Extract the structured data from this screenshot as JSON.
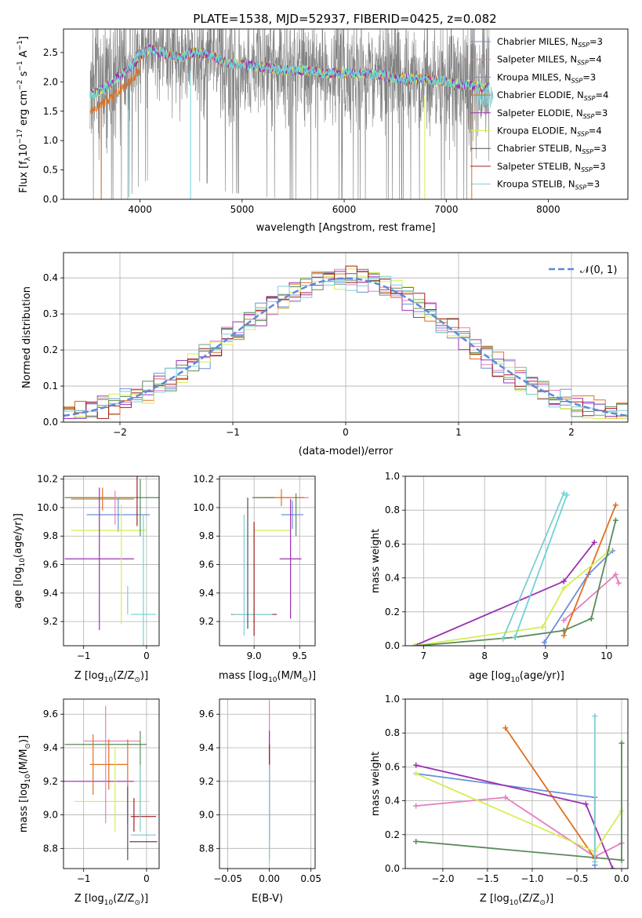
{
  "figure": {
    "title": "PLATE=1538, MJD=52937, FIBERID=0425, z=0.082"
  },
  "colors": {
    "Chabrier MILES": "#6a8fdc",
    "Salpeter MILES": "#e47fbf",
    "Kroupa MILES": "#6a8fdc",
    "Chabrier ELODIE": "#e0701e",
    "Salpeter ELODIE": "#9b30b0",
    "Kroupa ELODIE": "#d4ee52",
    "Chabrier STELIB": "#505050",
    "Salpeter STELIB": "#a02020",
    "Kroupa STELIB": "#80cdd2",
    "data": "#808080",
    "model": "#6ad4d8",
    "green": "#5a8a5a"
  },
  "chart_data": [
    {
      "type": "line",
      "id": "spectrum",
      "xlabel": "wavelength [Angstrom, rest frame]",
      "ylabel": "Flux [f",
      "ylabel_parts": [
        "Flux [f",
        "λ",
        "10",
        "−17",
        " erg cm",
        "−2",
        " s",
        "−1",
        " A",
        "−1",
        "]"
      ],
      "xlim": [
        3250,
        8780
      ],
      "ylim": [
        0,
        2.9
      ],
      "xticks": [
        "4000",
        "5000",
        "6000",
        "7000",
        "8000"
      ],
      "yticks": [
        "0.0",
        "0.5",
        "1.0",
        "1.5",
        "2.0",
        "2.5"
      ],
      "legend_position": "top-right",
      "legend": [
        {
          "label": "Chabrier MILES, N",
          "sub": "SSP",
          "suffix": "=3",
          "color": "#6a8fdc"
        },
        {
          "label": "Salpeter MILES, N",
          "sub": "SSP",
          "suffix": "=4",
          "color": "#e47fbf"
        },
        {
          "label": "Kroupa MILES, N",
          "sub": "SSP",
          "suffix": "=3",
          "color": "#6a8fdc"
        },
        {
          "label": "Chabrier ELODIE, N",
          "sub": "SSP",
          "suffix": "=4",
          "color": "#e0701e"
        },
        {
          "label": "Salpeter ELODIE, N",
          "sub": "SSP",
          "suffix": "=3",
          "color": "#9b30b0"
        },
        {
          "label": "Kroupa ELODIE, N",
          "sub": "SSP",
          "suffix": "=4",
          "color": "#d4ee52"
        },
        {
          "label": "Chabrier STELIB, N",
          "sub": "SSP",
          "suffix": "=3",
          "color": "#505050"
        },
        {
          "label": "Salpeter STELIB, N",
          "sub": "SSP",
          "suffix": "=3",
          "color": "#a02020"
        },
        {
          "label": "Kroupa STELIB, N",
          "sub": "SSP",
          "suffix": "=3",
          "color": "#80cdd2"
        }
      ],
      "continuum": {
        "x": [
          3500,
          3600,
          3700,
          3800,
          3900,
          4000,
          4100,
          4200,
          4300,
          4400,
          4500,
          4600,
          4700,
          4800,
          4900,
          5000,
          5200,
          5400,
          5600,
          5800,
          6000,
          6200,
          6400,
          6600,
          6800,
          7000,
          7200,
          7400
        ],
        "y": [
          1.75,
          1.85,
          1.95,
          2.1,
          2.25,
          2.45,
          2.55,
          2.5,
          2.45,
          2.4,
          2.5,
          2.5,
          2.45,
          2.35,
          2.3,
          2.3,
          2.25,
          2.2,
          2.2,
          2.15,
          2.15,
          2.15,
          2.1,
          2.05,
          2.05,
          2.0,
          1.95,
          1.9
        ]
      }
    },
    {
      "type": "bar",
      "id": "residuals",
      "xlabel": "(data-model)/error",
      "ylabel": "Normed distribution",
      "xlim": [
        -2.5,
        2.5
      ],
      "ylim": [
        0,
        0.47
      ],
      "xticks": [
        "−2",
        "−1",
        "0",
        "1",
        "2"
      ],
      "yticks": [
        "0.0",
        "0.1",
        "0.2",
        "0.3",
        "0.4"
      ],
      "legend_label": "𝒩(0, 1)",
      "legend_position": "top-right",
      "bin_width": 0.1,
      "x_start": -2.5
    },
    {
      "type": "scatter",
      "id": "age-vs-Z",
      "xlabel": "Z [log",
      "xlabel_parts": [
        "Z [log",
        "10",
        "(Z/Z",
        "⊙",
        ")]"
      ],
      "ylabel_parts": [
        "age  [log",
        "10",
        "(age/yr)]"
      ],
      "xlim": [
        -1.32,
        0.2
      ],
      "ylim": [
        9.03,
        10.22
      ],
      "xticks": [
        "−1",
        "0"
      ],
      "yticks": [
        "9.2",
        "9.4",
        "9.6",
        "9.8",
        "10.0",
        "10.2"
      ]
    },
    {
      "type": "scatter",
      "id": "age-vs-mass",
      "xlabel_parts": [
        "mass [log",
        "10",
        "(M/M",
        "⊙",
        ")]"
      ],
      "xlim": [
        8.62,
        9.67
      ],
      "ylim": [
        9.03,
        10.22
      ],
      "xticks": [
        "9.0",
        "9.5"
      ],
      "yticks": [
        "9.2",
        "9.4",
        "9.6",
        "9.8",
        "10.0",
        "10.2"
      ]
    },
    {
      "type": "line",
      "id": "massweight-vs-age",
      "xlabel_parts": [
        "age  [log",
        "10",
        "(age/yr)]"
      ],
      "ylabel": "mass weight",
      "xlim": [
        6.7,
        10.35
      ],
      "ylim": [
        0,
        1.0
      ],
      "xticks": [
        "7",
        "8",
        "9",
        "10"
      ],
      "yticks": [
        "0.0",
        "0.2",
        "0.4",
        "0.6",
        "0.8",
        "1.0"
      ],
      "series": [
        {
          "color": "#6a8fdc",
          "x": [
            8.98,
            9.7,
            10.1
          ],
          "y": [
            0.02,
            0.42,
            0.56
          ]
        },
        {
          "color": "#e47fbf",
          "x": [
            9.3,
            10.15,
            10.2
          ],
          "y": [
            0.15,
            0.42,
            0.37
          ]
        },
        {
          "color": "#e0701e",
          "x": [
            9.3,
            10.15
          ],
          "y": [
            0.06,
            0.83
          ]
        },
        {
          "color": "#9b30b0",
          "x": [
            6.85,
            9.3,
            9.8
          ],
          "y": [
            0.0,
            0.38,
            0.61
          ]
        },
        {
          "color": "#d4ee52",
          "x": [
            6.85,
            8.95,
            9.3,
            10.05
          ],
          "y": [
            0.0,
            0.11,
            0.34,
            0.56
          ]
        },
        {
          "color": "#5a8a5a",
          "x": [
            6.9,
            8.5,
            9.3,
            9.75,
            10.15
          ],
          "y": [
            0.0,
            0.05,
            0.09,
            0.16,
            0.74
          ]
        },
        {
          "color": "#80cdd2",
          "x": [
            8.3,
            9.3
          ],
          "y": [
            0.04,
            0.9
          ]
        },
        {
          "color": "#6ad4d8",
          "x": [
            8.5,
            9.35
          ],
          "y": [
            0.05,
            0.89
          ]
        }
      ]
    },
    {
      "type": "scatter",
      "id": "mass-vs-Z",
      "xlabel_parts": [
        "Z [log",
        "10",
        "(Z/Z",
        "⊙",
        ")]"
      ],
      "ylabel_parts": [
        "mass [log",
        "10",
        "(M/M",
        "⊙",
        ")]"
      ],
      "xlim": [
        -1.32,
        0.2
      ],
      "ylim": [
        8.68,
        9.69
      ],
      "xticks": [
        "−1",
        "0"
      ],
      "yticks": [
        "8.8",
        "9.0",
        "9.2",
        "9.4",
        "9.6"
      ]
    },
    {
      "type": "scatter",
      "id": "mass-vs-ebv",
      "xlabel": "E(B-V)",
      "xlim": [
        -0.06,
        0.055
      ],
      "ylim": [
        8.68,
        9.69
      ],
      "xticks": [
        "−0.05",
        "0.00",
        "0.05"
      ],
      "yticks": [
        "8.8",
        "9.0",
        "9.2",
        "9.4",
        "9.6"
      ]
    },
    {
      "type": "line",
      "id": "massweight-vs-Z",
      "xlabel_parts": [
        "Z [log",
        "10",
        "(Z/Z",
        "⊙",
        ")]"
      ],
      "ylabel": "mass weight",
      "xlim": [
        -2.42,
        0.07
      ],
      "ylim": [
        0,
        1.0
      ],
      "xticks": [
        "−2.0",
        "−1.5",
        "−1.0",
        "−0.5",
        "0.0"
      ],
      "yticks": [
        "0.0",
        "0.2",
        "0.4",
        "0.6",
        "0.8",
        "1.0"
      ],
      "series": [
        {
          "color": "#6a8fdc",
          "x": [
            -2.3,
            -0.3,
            -0.3
          ],
          "y": [
            0.56,
            0.42,
            0.02
          ]
        },
        {
          "color": "#e47fbf",
          "x": [
            -2.3,
            -1.3,
            -0.3,
            0.0
          ],
          "y": [
            0.37,
            0.42,
            0.07,
            0.15
          ]
        },
        {
          "color": "#e0701e",
          "x": [
            -1.3,
            -0.3
          ],
          "y": [
            0.83,
            0.06
          ]
        },
        {
          "color": "#9b30b0",
          "x": [
            -2.3,
            -0.4,
            -0.1
          ],
          "y": [
            0.61,
            0.38,
            0.0
          ]
        },
        {
          "color": "#d4ee52",
          "x": [
            -2.3,
            -0.3,
            0.0
          ],
          "y": [
            0.56,
            0.1,
            0.34
          ]
        },
        {
          "color": "#5a8a5a",
          "x": [
            -2.3,
            0.0,
            0.0
          ],
          "y": [
            0.16,
            0.05,
            0.74
          ]
        },
        {
          "color": "#80cdd2",
          "x": [
            -0.3,
            -0.3
          ],
          "y": [
            0.9,
            0.04
          ]
        }
      ]
    }
  ]
}
